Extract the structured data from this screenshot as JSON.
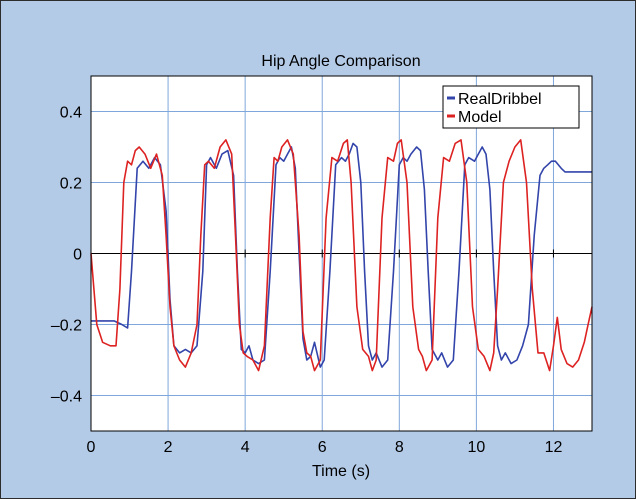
{
  "chart_data": {
    "type": "line",
    "title": "Hip Angle Comparison",
    "xlabel": "Time (s)",
    "ylabel": "",
    "xlim": [
      0,
      13
    ],
    "ylim": [
      -0.5,
      0.5
    ],
    "xticks": [
      0,
      2,
      4,
      6,
      8,
      10,
      12
    ],
    "xtick_labels": [
      "0",
      "2",
      "4",
      "6",
      "8",
      "10",
      "12"
    ],
    "yticks": [
      0.4,
      0.2,
      0,
      -0.2,
      -0.4
    ],
    "ytick_labels": [
      "0.4",
      "0.2",
      "0",
      "–0.2",
      "–0.4"
    ],
    "grid": true,
    "legend_position": "top-right",
    "series": [
      {
        "name": "RealDribbel",
        "color": "#3344aa",
        "x": [
          0,
          0.3,
          0.6,
          0.8,
          0.95,
          1.05,
          1.2,
          1.35,
          1.5,
          1.65,
          1.8,
          1.95,
          2.05,
          2.15,
          2.3,
          2.45,
          2.6,
          2.75,
          2.9,
          3.0,
          3.1,
          3.25,
          3.4,
          3.55,
          3.7,
          3.8,
          3.9,
          4.0,
          4.1,
          4.2,
          4.35,
          4.5,
          4.65,
          4.8,
          4.9,
          5.0,
          5.1,
          5.2,
          5.3,
          5.4,
          5.5,
          5.6,
          5.7,
          5.8,
          5.95,
          6.05,
          6.2,
          6.35,
          6.5,
          6.6,
          6.7,
          6.8,
          6.9,
          7.0,
          7.1,
          7.2,
          7.3,
          7.4,
          7.55,
          7.7,
          7.85,
          8.0,
          8.1,
          8.2,
          8.3,
          8.45,
          8.55,
          8.65,
          8.75,
          8.85,
          9.0,
          9.1,
          9.25,
          9.4,
          9.55,
          9.7,
          9.8,
          9.95,
          10.05,
          10.15,
          10.25,
          10.35,
          10.45,
          10.55,
          10.65,
          10.75,
          10.9,
          11.05,
          11.2,
          11.35,
          11.5,
          11.65,
          11.75,
          11.85,
          11.95,
          12.05,
          12.2,
          12.3,
          13.0
        ],
        "y": [
          -0.19,
          -0.19,
          -0.19,
          -0.2,
          -0.21,
          -0.05,
          0.24,
          0.26,
          0.24,
          0.27,
          0.25,
          0.12,
          -0.13,
          -0.26,
          -0.28,
          -0.27,
          -0.28,
          -0.26,
          -0.05,
          0.25,
          0.27,
          0.24,
          0.28,
          0.29,
          0.22,
          -0.05,
          -0.27,
          -0.28,
          -0.26,
          -0.3,
          -0.31,
          -0.3,
          -0.05,
          0.25,
          0.27,
          0.26,
          0.28,
          0.3,
          0.24,
          0.0,
          -0.24,
          -0.3,
          -0.29,
          -0.25,
          -0.32,
          -0.3,
          -0.05,
          0.25,
          0.27,
          0.26,
          0.28,
          0.31,
          0.3,
          0.2,
          -0.05,
          -0.26,
          -0.3,
          -0.28,
          -0.32,
          -0.3,
          -0.05,
          0.25,
          0.27,
          0.26,
          0.28,
          0.3,
          0.29,
          0.18,
          -0.05,
          -0.27,
          -0.3,
          -0.28,
          -0.32,
          -0.3,
          -0.05,
          0.25,
          0.27,
          0.26,
          0.28,
          0.3,
          0.28,
          0.18,
          -0.05,
          -0.26,
          -0.3,
          -0.28,
          -0.31,
          -0.3,
          -0.26,
          -0.2,
          0.05,
          0.22,
          0.24,
          0.25,
          0.26,
          0.26,
          0.24,
          0.23,
          0.23
        ]
      },
      {
        "name": "Model",
        "color": "#dd2222",
        "x": [
          0,
          0.15,
          0.3,
          0.5,
          0.65,
          0.75,
          0.85,
          0.95,
          1.05,
          1.15,
          1.25,
          1.4,
          1.55,
          1.7,
          1.85,
          1.95,
          2.05,
          2.15,
          2.3,
          2.45,
          2.6,
          2.75,
          2.85,
          2.95,
          3.05,
          3.2,
          3.35,
          3.5,
          3.65,
          3.75,
          3.85,
          3.95,
          4.05,
          4.2,
          4.35,
          4.5,
          4.65,
          4.75,
          4.85,
          4.95,
          5.1,
          5.25,
          5.4,
          5.5,
          5.6,
          5.7,
          5.8,
          5.95,
          6.1,
          6.25,
          6.4,
          6.55,
          6.65,
          6.75,
          6.9,
          7.05,
          7.2,
          7.3,
          7.4,
          7.55,
          7.7,
          7.85,
          7.95,
          8.05,
          8.2,
          8.35,
          8.5,
          8.6,
          8.7,
          8.85,
          9.0,
          9.15,
          9.3,
          9.45,
          9.6,
          9.75,
          9.9,
          10.05,
          10.2,
          10.35,
          10.45,
          10.55,
          10.7,
          10.85,
          11.0,
          11.15,
          11.3,
          11.45,
          11.6,
          11.75,
          11.9,
          12.0,
          12.1,
          12.2,
          12.35,
          12.5,
          12.65,
          12.8,
          12.9,
          13.0
        ],
        "y": [
          0.0,
          -0.2,
          -0.25,
          -0.26,
          -0.26,
          -0.1,
          0.2,
          0.26,
          0.25,
          0.29,
          0.3,
          0.28,
          0.24,
          0.28,
          0.22,
          0.05,
          -0.15,
          -0.26,
          -0.3,
          -0.32,
          -0.28,
          -0.2,
          0.05,
          0.25,
          0.26,
          0.24,
          0.3,
          0.32,
          0.28,
          0.05,
          -0.2,
          -0.28,
          -0.29,
          -0.3,
          -0.33,
          -0.26,
          0.1,
          0.27,
          0.26,
          0.3,
          0.32,
          0.28,
          0.05,
          -0.22,
          -0.28,
          -0.29,
          -0.33,
          -0.3,
          0.1,
          0.27,
          0.26,
          0.31,
          0.32,
          0.2,
          -0.15,
          -0.27,
          -0.29,
          -0.33,
          -0.3,
          0.1,
          0.27,
          0.26,
          0.31,
          0.32,
          0.2,
          -0.15,
          -0.27,
          -0.29,
          -0.33,
          -0.3,
          0.1,
          0.27,
          0.26,
          0.31,
          0.32,
          0.2,
          -0.15,
          -0.27,
          -0.29,
          -0.33,
          -0.28,
          -0.1,
          0.2,
          0.26,
          0.3,
          0.32,
          0.2,
          -0.1,
          -0.28,
          -0.28,
          -0.33,
          -0.26,
          -0.18,
          -0.27,
          -0.31,
          -0.32,
          -0.3,
          -0.25,
          -0.2,
          -0.15
        ]
      }
    ]
  }
}
